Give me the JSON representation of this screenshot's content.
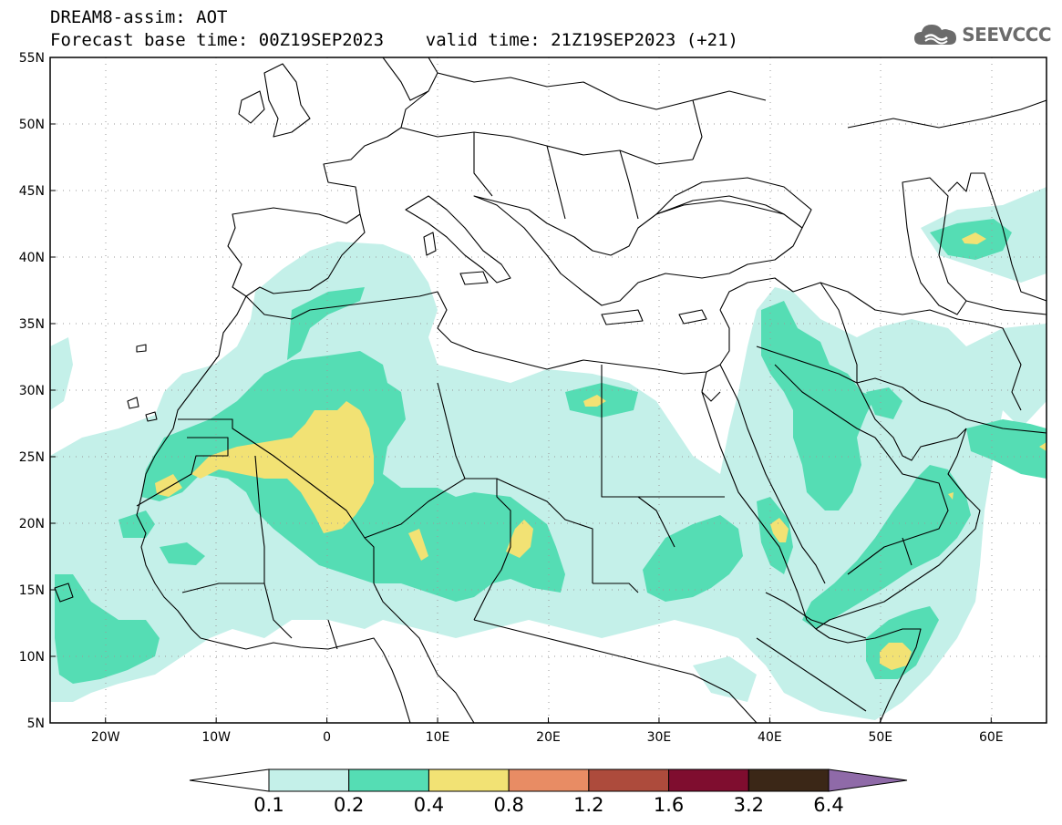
{
  "header": {
    "title_line1": "DREAM8-assim: AOT",
    "title_line2": "Forecast base time: 00Z19SEP2023    valid time: 21Z19SEP2023 (+21)"
  },
  "logo": {
    "text": "SEEVCCC",
    "icon": "cloud-icon"
  },
  "map": {
    "lat_labels": [
      "55N",
      "50N",
      "45N",
      "40N",
      "35N",
      "30N",
      "25N",
      "20N",
      "15N",
      "10N",
      "5N"
    ],
    "lon_labels": [
      "20W",
      "10W",
      "0",
      "10E",
      "20E",
      "30E",
      "40E",
      "50E",
      "60E"
    ],
    "lat_range": [
      5,
      55
    ],
    "lon_range": [
      -25,
      65
    ],
    "grid": "dotted"
  },
  "colorbar": {
    "ticks": [
      "0.1",
      "0.2",
      "0.4",
      "0.8",
      "1.2",
      "1.6",
      "3.2",
      "6.4"
    ],
    "colors": [
      "#c4f0e9",
      "#55ddb4",
      "#f2e274",
      "#e88c64",
      "#ad4b3c",
      "#7f0d2f",
      "#3b2717",
      "#8f6aa8"
    ]
  },
  "colors": {
    "level_0_1": "#c4f0e9",
    "level_0_2": "#55ddb4",
    "level_0_4": "#f2e274"
  }
}
